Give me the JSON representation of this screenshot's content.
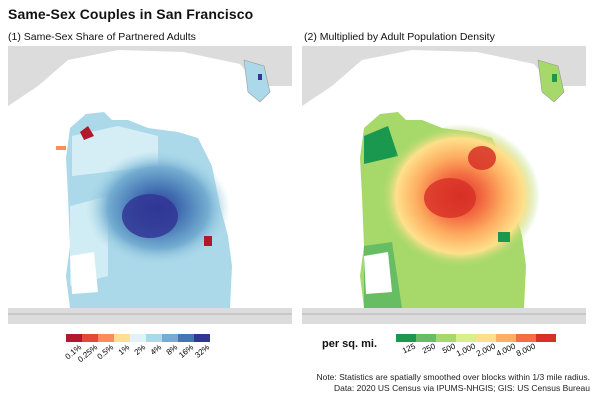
{
  "title": "Same-Sex Couples in San Francisco",
  "panels": [
    {
      "id": "panel-1",
      "title": "(1) Same-Sex Share of Partnered Adults"
    },
    {
      "id": "panel-2",
      "title": "(2) Multiplied by Adult Population Density"
    }
  ],
  "legend1": {
    "labels": [
      "0.1%",
      "0.25%",
      "0.5%",
      "1%",
      "2%",
      "4%",
      "8%",
      "16%",
      "32%"
    ],
    "colors": [
      "#b2182b",
      "#e34a33",
      "#fc8d59",
      "#fee090",
      "#e0f3f8",
      "#abd9e9",
      "#74add1",
      "#4575b4",
      "#313695"
    ]
  },
  "legend2": {
    "unit_label": "per sq. mi.",
    "labels": [
      "125",
      "250",
      "500",
      "1,000",
      "2,000",
      "4,000",
      "8,000"
    ],
    "colors": [
      "#1a9850",
      "#66bd63",
      "#a6d96a",
      "#d9ef8b",
      "#fee08b",
      "#fdae61",
      "#f46d43",
      "#d73027"
    ]
  },
  "notes": {
    "line1": "Note: Statistics are spatially smoothed over blocks within 1/3 mile radius.",
    "line2": "Data: 2020 US Census via IPUMS-NHGIS; GIS: US Census Bureau"
  },
  "map_style": {
    "background_land": "#dcdcdc",
    "water": "#ffffff",
    "panel1_base": "#abd9e9",
    "panel1_hot": "#313695",
    "panel2_base": "#a6d96a",
    "panel2_hot": "#d73027"
  }
}
